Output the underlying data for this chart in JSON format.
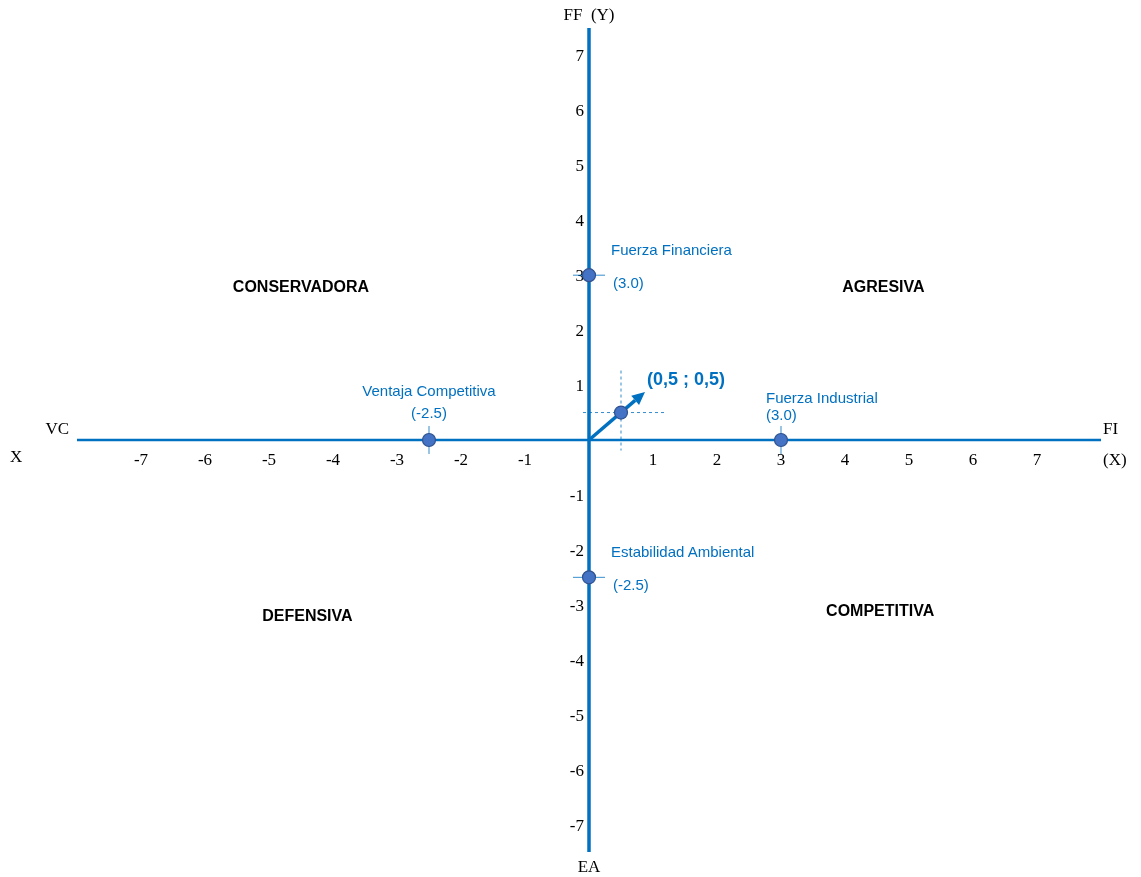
{
  "chart_data": {
    "type": "scatter",
    "xlabel": "(X)",
    "ylabel": "FF  (Y)",
    "xlim": [
      -8,
      8
    ],
    "ylim": [
      -7.5,
      7.5
    ],
    "xticks": [
      -7,
      -6,
      -5,
      -4,
      -3,
      -2,
      -1,
      1,
      2,
      3,
      4,
      5,
      6,
      7
    ],
    "yticks": [
      -7,
      -6,
      -5,
      -4,
      -3,
      -2,
      -1,
      1,
      2,
      3,
      4,
      5,
      6,
      7
    ],
    "marker": "circle",
    "series": [
      {
        "color": "#4472c4",
        "x": [
          0,
          3,
          0,
          -2.5
        ],
        "values": [
          3,
          0,
          -2.5,
          0
        ],
        "value_labels": [
          "(3.0)",
          null,
          "(-2.5)",
          null
        ]
      },
      {
        "color": "#4472c4",
        "x": [
          0.5
        ],
        "values": [
          0.5
        ],
        "value_labels": [
          "(0,5 ; 0,5)"
        ]
      }
    ],
    "annotations": [
      "CONSERVADORA",
      "AGRESIVA",
      "DEFENSIVA",
      "COMPETITIVA",
      "VC",
      "FI",
      "EA",
      "X",
      {
        "text": "Fuerza Financiera",
        "x": 0,
        "y": 3
      },
      {
        "text": "Fuerza Industrial",
        "x": 3,
        "y": 0
      },
      {
        "text": "(3.0)",
        "x": 3,
        "y": 0
      },
      {
        "text": "Estabilidad Ambiental",
        "x": 0,
        "y": -2.5
      },
      {
        "text": "Ventaja Competitiva",
        "x": -2.5,
        "y": 0
      },
      {
        "text": "(-2.5)",
        "x": -2.5,
        "y": 0
      }
    ]
  }
}
